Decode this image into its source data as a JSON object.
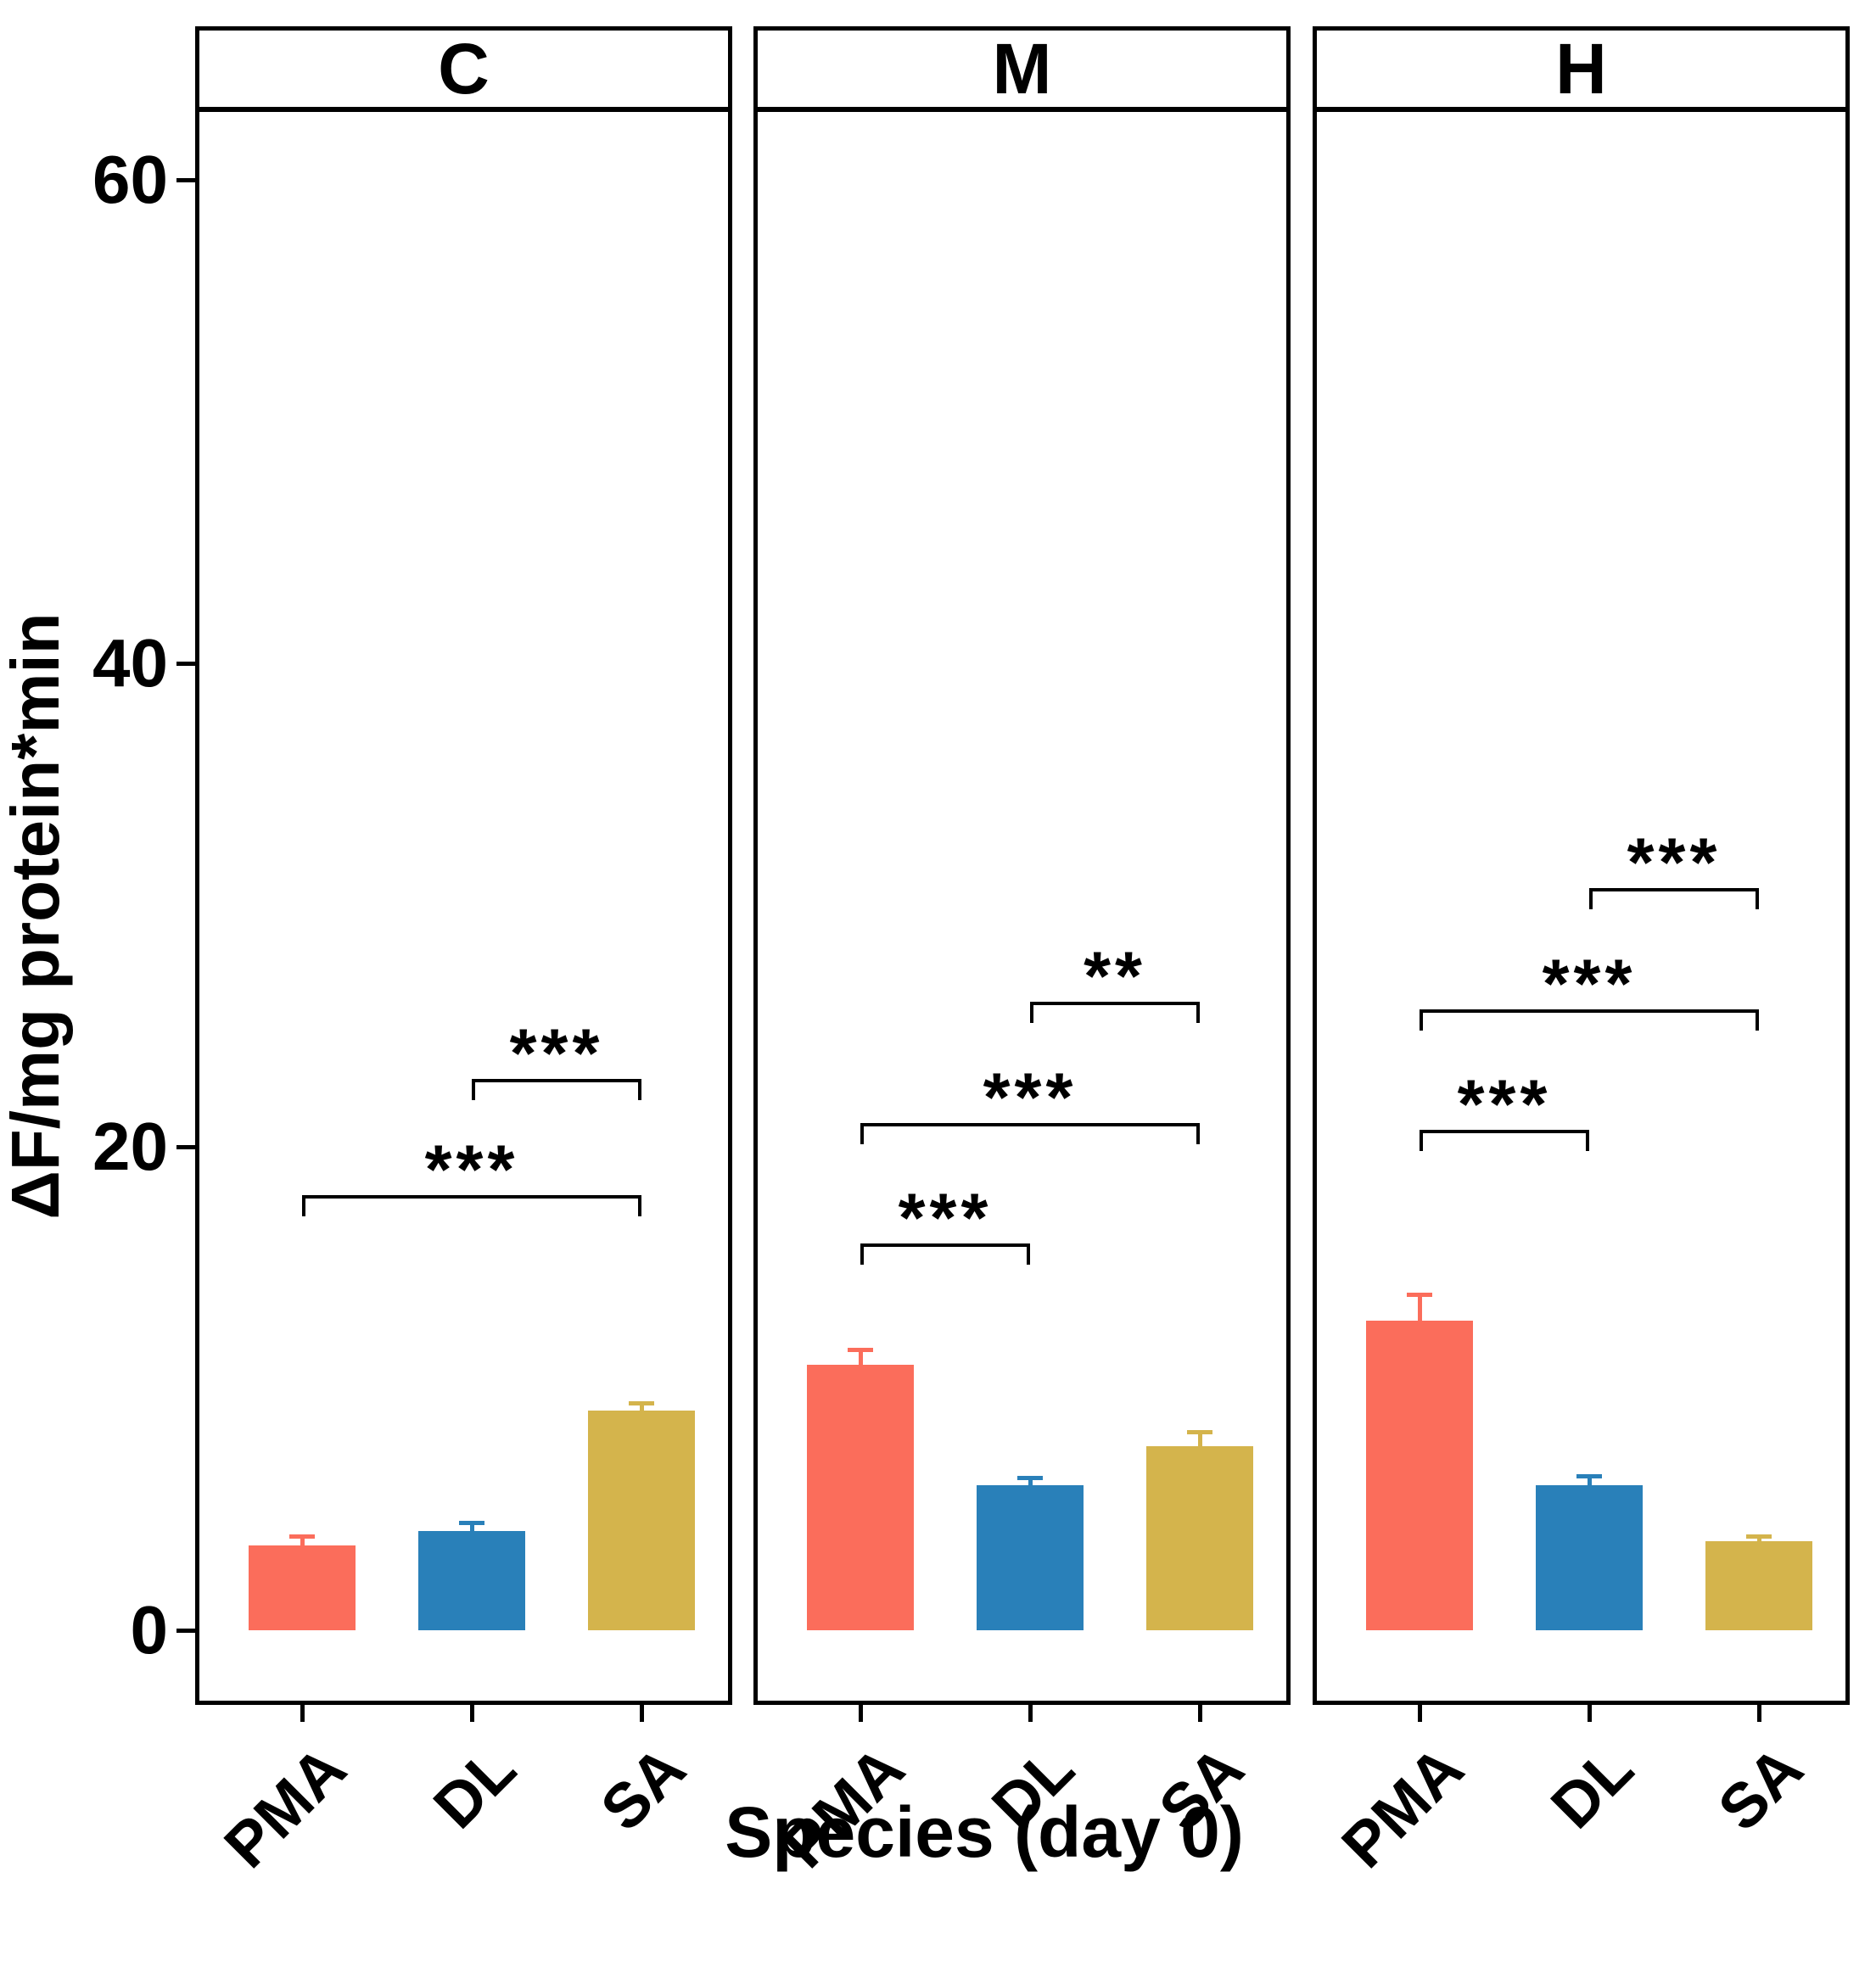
{
  "chart_data": {
    "type": "bar",
    "title": "",
    "xlabel": "Species (day 0)",
    "ylabel": "ΔF/mg protein*min",
    "categories": [
      "PMA",
      "DL",
      "SA"
    ],
    "facet_labels": [
      "C",
      "M",
      "H"
    ],
    "bar_colors": {
      "PMA": "#FB6D5B",
      "DL": "#2980B9",
      "SA": "#D4B44C"
    },
    "yticks": [
      0,
      20,
      40,
      60
    ],
    "ylim": [
      -3,
      63
    ],
    "grid": false,
    "legend_position": "none",
    "error_bar_style": "upper cap, same color as bar",
    "facets": [
      {
        "label": "C",
        "bars": [
          {
            "category": "PMA",
            "value": 3.5,
            "error": 0.4
          },
          {
            "category": "DL",
            "value": 4.1,
            "error": 0.35
          },
          {
            "category": "SA",
            "value": 9.1,
            "error": 0.3
          }
        ],
        "significance": [
          {
            "from": "PMA",
            "to": "SA",
            "height": 18.0,
            "label": "***"
          },
          {
            "from": "DL",
            "to": "SA",
            "height": 22.8,
            "label": "***"
          }
        ]
      },
      {
        "label": "M",
        "bars": [
          {
            "category": "PMA",
            "value": 11.0,
            "error": 0.6
          },
          {
            "category": "DL",
            "value": 6.0,
            "error": 0.3
          },
          {
            "category": "SA",
            "value": 7.6,
            "error": 0.6
          }
        ],
        "significance": [
          {
            "from": "PMA",
            "to": "DL",
            "height": 16.0,
            "label": "***"
          },
          {
            "from": "PMA",
            "to": "SA",
            "height": 21.0,
            "label": "***"
          },
          {
            "from": "DL",
            "to": "SA",
            "height": 26.0,
            "label": "**"
          }
        ]
      },
      {
        "label": "H",
        "bars": [
          {
            "category": "PMA",
            "value": 12.8,
            "error": 1.1
          },
          {
            "category": "DL",
            "value": 6.0,
            "error": 0.4
          },
          {
            "category": "SA",
            "value": 3.7,
            "error": 0.2
          }
        ],
        "significance": [
          {
            "from": "PMA",
            "to": "DL",
            "height": 20.7,
            "label": "***"
          },
          {
            "from": "PMA",
            "to": "SA",
            "height": 25.7,
            "label": "***"
          },
          {
            "from": "DL",
            "to": "SA",
            "height": 30.7,
            "label": "***"
          }
        ]
      }
    ]
  }
}
